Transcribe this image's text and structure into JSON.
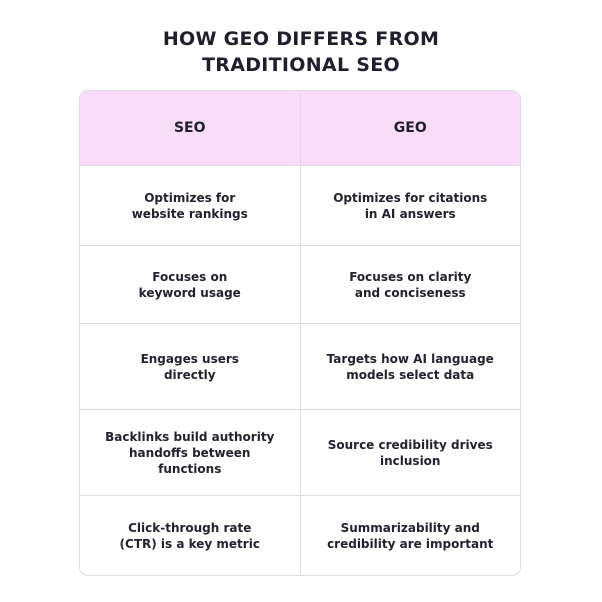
{
  "title": {
    "line1": "HOW GEO DIFFERS FROM",
    "line2": "TRADITIONAL SEO"
  },
  "table": {
    "headers": [
      "SEO",
      "GEO"
    ],
    "rows": [
      [
        "Optimizes for\nwebsite rankings",
        "Optimizes for citations\nin AI answers"
      ],
      [
        "Focuses on\nkeyword usage",
        "Focuses on clarity\nand conciseness"
      ],
      [
        "Engages users\ndirectly",
        "Targets how AI language\nmodels select data"
      ],
      [
        "Backlinks build authority\nhandoffs between\nfunctions",
        "Source credibility drives\ninclusion"
      ],
      [
        "Click-through rate\n(CTR) is a key metric",
        "Summarizability and\ncredibility are important"
      ]
    ]
  },
  "colors": {
    "header_bg": "#f9dcfa",
    "border": "#dcdce2",
    "text": "#1f1f2e"
  }
}
